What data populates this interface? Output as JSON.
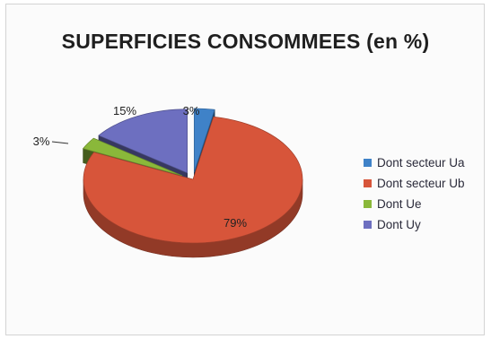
{
  "chart_data": {
    "type": "pie",
    "title": "SUPERFICIES CONSOMMEES  (en %)",
    "categories": [
      "Dont secteur Ua",
      "Dont secteur Ub",
      "Dont Ue",
      "Dont Uy"
    ],
    "values": [
      3,
      79,
      3,
      15
    ],
    "data_labels": [
      "3%",
      "79%",
      "3%",
      "15%"
    ],
    "colors": [
      "#3f82c8",
      "#d7553a",
      "#8ab83a",
      "#6d6fc0"
    ],
    "legend_position": "right",
    "style": "3d-exploded"
  }
}
